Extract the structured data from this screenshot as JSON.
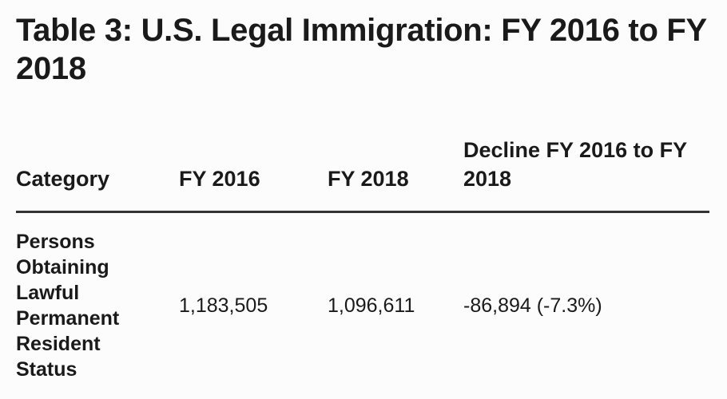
{
  "title": "Table 3: U.S. Legal Immigration: FY 2016 to FY 2018",
  "table": {
    "headers": [
      "Category",
      "FY 2016",
      "FY 2018",
      "Decline FY 2016 to FY 2018"
    ],
    "rows": [
      [
        "Persons Obtaining Lawful Permanent Resident Status",
        "1,183,505",
        "1,096,611",
        "-86,894 (-7.3%)"
      ]
    ]
  }
}
